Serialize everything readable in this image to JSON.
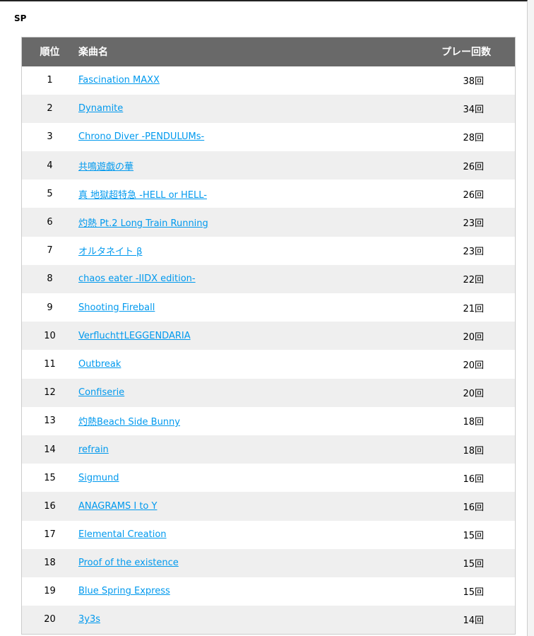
{
  "section_label": "SP",
  "table": {
    "headers": {
      "rank": "順位",
      "title": "楽曲名",
      "count": "プレー回数"
    },
    "count_suffix": "回",
    "link_color": "#0099ee",
    "header_bg": "#696969",
    "rows": [
      {
        "rank": "1",
        "title": "Fascination MAXX",
        "count": "38"
      },
      {
        "rank": "2",
        "title": "Dynamite",
        "count": "34"
      },
      {
        "rank": "3",
        "title": "Chrono Diver -PENDULUMs-",
        "count": "28"
      },
      {
        "rank": "4",
        "title": "共鳴遊戯の華",
        "count": "26"
      },
      {
        "rank": "5",
        "title": "真 地獄超特急 -HELL or HELL-",
        "count": "26"
      },
      {
        "rank": "6",
        "title": "灼熱 Pt.2 Long Train Running",
        "count": "23"
      },
      {
        "rank": "7",
        "title": "オルタネイト β",
        "count": "23"
      },
      {
        "rank": "8",
        "title": "chaos eater -IIDX edition-",
        "count": "22"
      },
      {
        "rank": "9",
        "title": "Shooting Fireball",
        "count": "21"
      },
      {
        "rank": "10",
        "title": "Verflucht†LEGGENDARIA",
        "count": "20"
      },
      {
        "rank": "11",
        "title": "Outbreak",
        "count": "20"
      },
      {
        "rank": "12",
        "title": "Confiserie",
        "count": "20"
      },
      {
        "rank": "13",
        "title": "灼熱Beach Side Bunny",
        "count": "18"
      },
      {
        "rank": "14",
        "title": "refrain",
        "count": "18"
      },
      {
        "rank": "15",
        "title": "Sigmund",
        "count": "16"
      },
      {
        "rank": "16",
        "title": "ANAGRAMS I to Y",
        "count": "16"
      },
      {
        "rank": "17",
        "title": "Elemental Creation",
        "count": "15"
      },
      {
        "rank": "18",
        "title": "Proof of the existence",
        "count": "15"
      },
      {
        "rank": "19",
        "title": "Blue Spring Express",
        "count": "15"
      },
      {
        "rank": "20",
        "title": "3y3s",
        "count": "14"
      }
    ]
  }
}
